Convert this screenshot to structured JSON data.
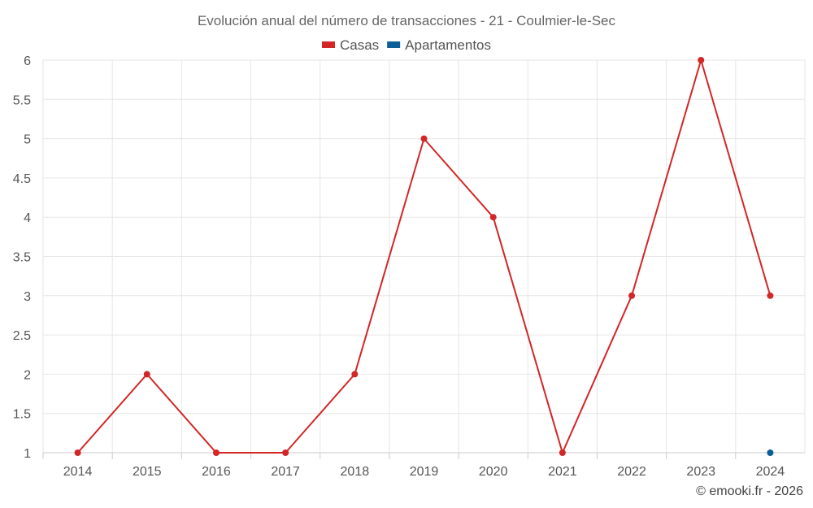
{
  "chart_data": {
    "type": "line",
    "title": "Evolución anual del número de transacciones - 21 - Coulmier-le-Sec",
    "xlabel": "",
    "ylabel": "",
    "x": [
      "2014",
      "2015",
      "2016",
      "2017",
      "2018",
      "2019",
      "2020",
      "2021",
      "2022",
      "2023",
      "2024"
    ],
    "y_ticks": [
      "1",
      "1.5",
      "2",
      "2.5",
      "3",
      "3.5",
      "4",
      "4.5",
      "5",
      "5.5",
      "6"
    ],
    "ylim": [
      1,
      6
    ],
    "grid": true,
    "legend_position": "top",
    "series": [
      {
        "name": "Casas",
        "color": "#d32626",
        "values": [
          1,
          2,
          1,
          1,
          2,
          5,
          4,
          1,
          3,
          6,
          3
        ]
      },
      {
        "name": "Apartamentos",
        "color": "#0b5f96",
        "values": [
          null,
          null,
          null,
          null,
          null,
          null,
          null,
          null,
          null,
          null,
          1
        ]
      }
    ]
  },
  "credit": "© emooki.fr - 2026"
}
